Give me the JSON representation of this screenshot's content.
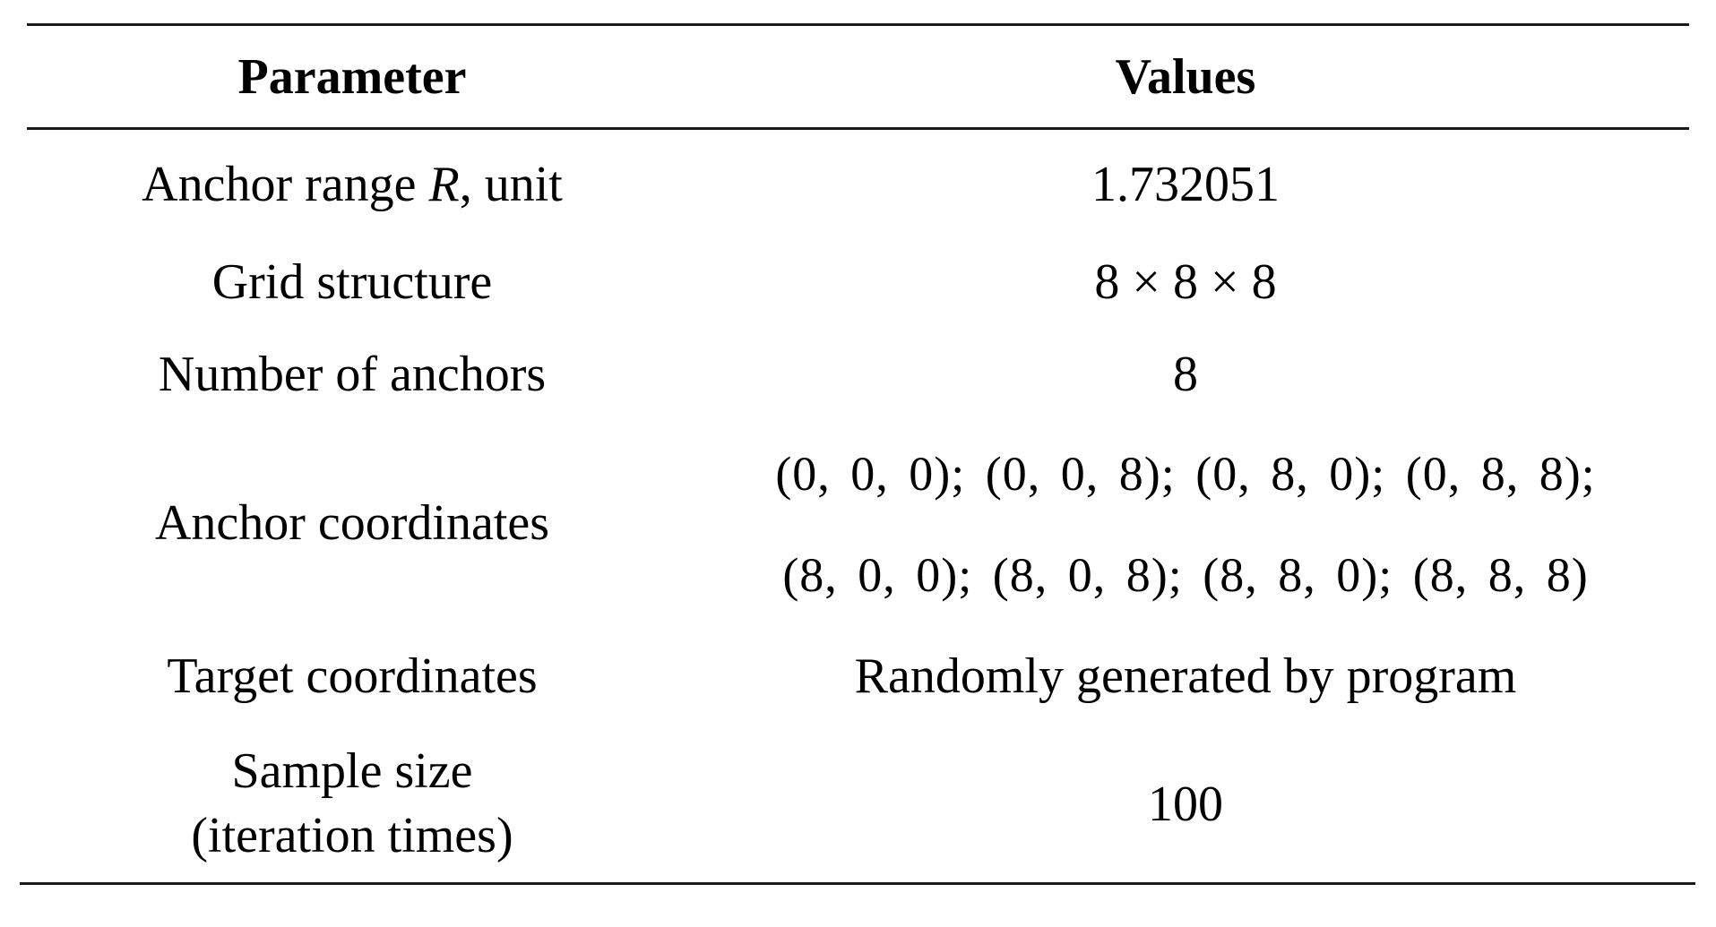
{
  "table": {
    "headers": {
      "parameter": "Parameter",
      "values": "Values"
    },
    "rows": [
      {
        "parameter_prefix": "Anchor range ",
        "parameter_italic": "R",
        "parameter_suffix": ", unit",
        "value": "1.732051"
      },
      {
        "parameter": "Grid structure",
        "value": "8 × 8 × 8"
      },
      {
        "parameter": "Number of anchors",
        "value": "8"
      },
      {
        "parameter": "Anchor coordinates",
        "value_line1": "(0,  0,  0); (0,  0,  8); (0,  8,  0); (0,  8,  8);",
        "value_line2": "(8,  0,  0); (8,  0,  8); (8,  8,  0); (8,  8,  8)"
      },
      {
        "parameter": "Target coordinates",
        "value": "Randomly generated by program"
      },
      {
        "parameter_line1": "Sample size",
        "parameter_line2": "(iteration times)",
        "value": "100"
      }
    ]
  }
}
